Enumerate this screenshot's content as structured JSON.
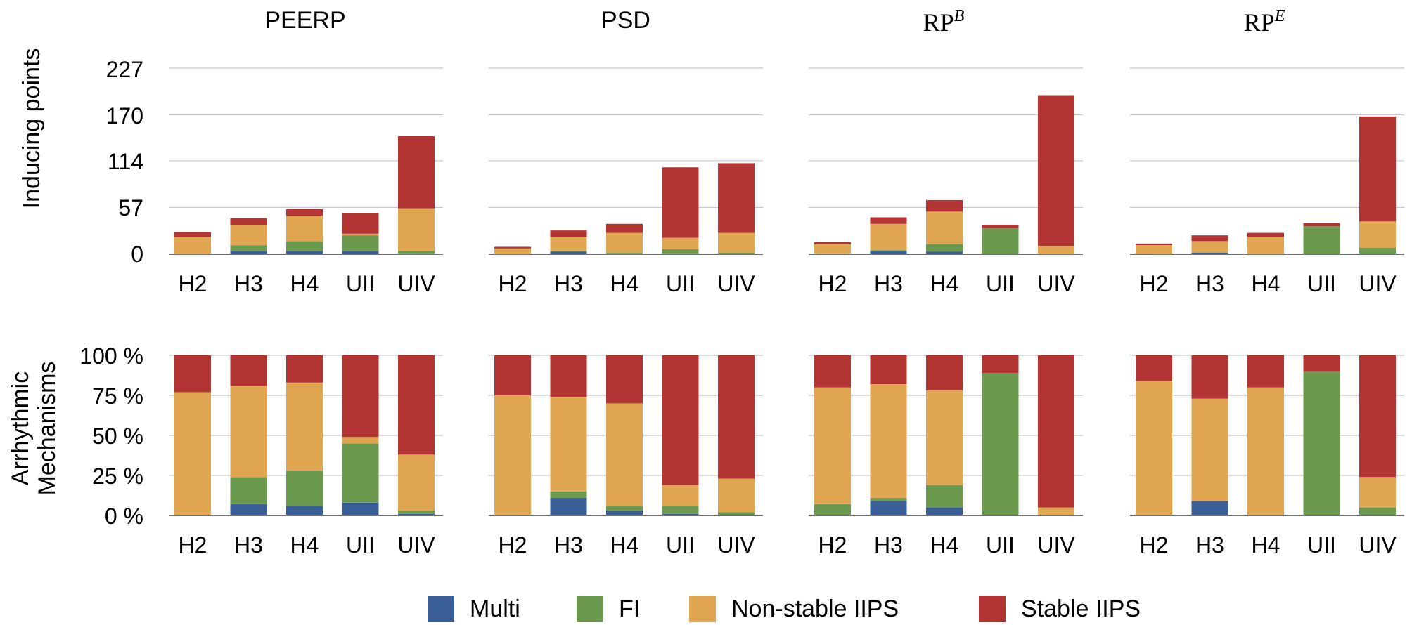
{
  "colors": {
    "Multi": "#3a5e97",
    "FI": "#6b9a4f",
    "Non-stable IIPS": "#e0a652",
    "Stable IIPS": "#b23533"
  },
  "legend": {
    "items": [
      "Multi",
      "FI",
      "Non-stable IIPS",
      "Stable IIPS"
    ]
  },
  "axes": {
    "top_ylabel": "Inducing points",
    "bottom_ylabel_line1": "Arrhythmic",
    "bottom_ylabel_line2": "Mechanisms",
    "top_ticks": [
      "0",
      "57",
      "114",
      "170",
      "227"
    ],
    "bottom_ticks": [
      "0 %",
      "25 %",
      "50 %",
      "75 %",
      "100 %"
    ]
  },
  "panels": {
    "p1": {
      "title": "PEERP"
    },
    "p2": {
      "title": "PSD"
    },
    "p3": {
      "base": "RP",
      "sup": "B"
    },
    "p4": {
      "base": "RP",
      "sup": "E"
    }
  },
  "chart_data": [
    {
      "type": "bar",
      "stacked": true,
      "ylabel": "Inducing points",
      "ylim": [
        0,
        227
      ],
      "yticks": [
        0,
        57,
        114,
        170,
        227
      ],
      "categories": [
        "H2",
        "H3",
        "H4",
        "UII",
        "UIV"
      ],
      "groups": [
        {
          "title": "PEERP",
          "series": [
            {
              "name": "Multi",
              "values": [
                0,
                4,
                4,
                4,
                1
              ]
            },
            {
              "name": "FI",
              "values": [
                0,
                7,
                12,
                19,
                3
              ]
            },
            {
              "name": "Non-stable IIPS",
              "values": [
                21,
                25,
                31,
                2,
                52
              ]
            },
            {
              "name": "Stable IIPS",
              "values": [
                6,
                8,
                8,
                25,
                88
              ]
            }
          ]
        },
        {
          "title": "PSD",
          "series": [
            {
              "name": "Multi",
              "values": [
                0,
                3,
                1,
                1,
                0
              ]
            },
            {
              "name": "FI",
              "values": [
                0,
                1,
                1,
                5,
                2
              ]
            },
            {
              "name": "Non-stable IIPS",
              "values": [
                7,
                17,
                24,
                14,
                24
              ]
            },
            {
              "name": "Stable IIPS",
              "values": [
                2,
                8,
                11,
                86,
                85
              ]
            }
          ]
        },
        {
          "title": "RP^B",
          "series": [
            {
              "name": "Multi",
              "values": [
                0,
                4,
                3,
                0,
                0
              ]
            },
            {
              "name": "FI",
              "values": [
                1,
                1,
                9,
                32,
                0
              ]
            },
            {
              "name": "Non-stable IIPS",
              "values": [
                11,
                32,
                40,
                0,
                10
              ]
            },
            {
              "name": "Stable IIPS",
              "values": [
                3,
                8,
                14,
                4,
                184
              ]
            }
          ]
        },
        {
          "title": "RP^E",
          "series": [
            {
              "name": "Multi",
              "values": [
                0,
                2,
                0,
                0,
                0
              ]
            },
            {
              "name": "FI",
              "values": [
                0,
                0,
                0,
                34,
                8
              ]
            },
            {
              "name": "Non-stable IIPS",
              "values": [
                11,
                14,
                21,
                0,
                32
              ]
            },
            {
              "name": "Stable IIPS",
              "values": [
                2,
                7,
                5,
                4,
                128
              ]
            }
          ]
        }
      ]
    },
    {
      "type": "bar",
      "stacked": true,
      "ylabel": "Arrhythmic Mechanisms",
      "ylim": [
        0,
        100
      ],
      "yticks": [
        0,
        25,
        50,
        75,
        100
      ],
      "unit": "%",
      "categories": [
        "H2",
        "H3",
        "H4",
        "UII",
        "UIV"
      ],
      "groups": [
        {
          "title": "PEERP",
          "series": [
            {
              "name": "Multi",
              "values": [
                0,
                7,
                6,
                8,
                1
              ]
            },
            {
              "name": "FI",
              "values": [
                0,
                17,
                22,
                37,
                2
              ]
            },
            {
              "name": "Non-stable IIPS",
              "values": [
                77,
                57,
                55,
                4,
                35
              ]
            },
            {
              "name": "Stable IIPS",
              "values": [
                23,
                19,
                17,
                51,
                62
              ]
            }
          ]
        },
        {
          "title": "PSD",
          "series": [
            {
              "name": "Multi",
              "values": [
                0,
                11,
                3,
                1,
                0
              ]
            },
            {
              "name": "FI",
              "values": [
                0,
                4,
                3,
                5,
                2
              ]
            },
            {
              "name": "Non-stable IIPS",
              "values": [
                75,
                59,
                64,
                13,
                21
              ]
            },
            {
              "name": "Stable IIPS",
              "values": [
                25,
                26,
                30,
                81,
                77
              ]
            }
          ]
        },
        {
          "title": "RP^B",
          "series": [
            {
              "name": "Multi",
              "values": [
                0,
                9,
                5,
                0,
                0
              ]
            },
            {
              "name": "FI",
              "values": [
                7,
                2,
                14,
                89,
                0
              ]
            },
            {
              "name": "Non-stable IIPS",
              "values": [
                73,
                71,
                59,
                0,
                5
              ]
            },
            {
              "name": "Stable IIPS",
              "values": [
                20,
                18,
                22,
                11,
                95
              ]
            }
          ]
        },
        {
          "title": "RP^E",
          "series": [
            {
              "name": "Multi",
              "values": [
                0,
                9,
                0,
                0,
                0
              ]
            },
            {
              "name": "FI",
              "values": [
                0,
                0,
                0,
                90,
                5
              ]
            },
            {
              "name": "Non-stable IIPS",
              "values": [
                84,
                64,
                80,
                0,
                19
              ]
            },
            {
              "name": "Stable IIPS",
              "values": [
                16,
                27,
                20,
                10,
                76
              ]
            }
          ]
        }
      ]
    }
  ]
}
